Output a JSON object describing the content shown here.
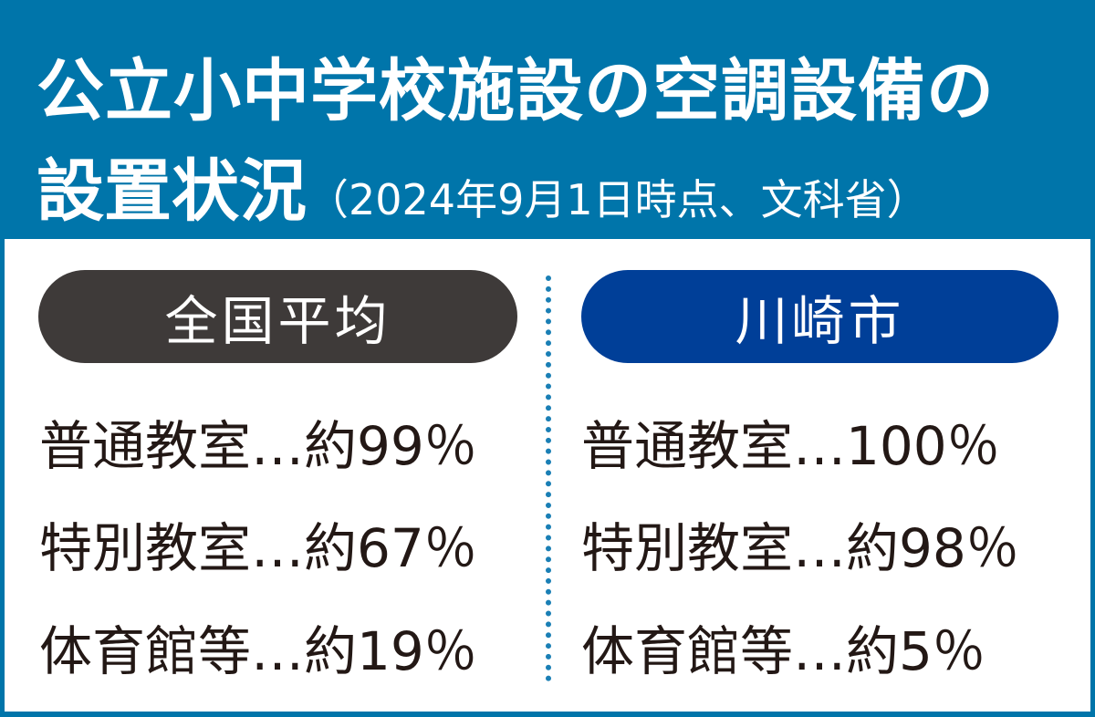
{
  "title": {
    "line1": "公立小中学校施設の空調設備の",
    "line2_main": "設置状況",
    "line2_note": "（2024年9月1日時点、文科省）"
  },
  "colors": {
    "header": "#0075aa",
    "national_pill": "#3e3a39",
    "kawasaki_pill": "#003f98"
  },
  "national": {
    "label": "全国平均",
    "rows": [
      {
        "text": "普通教室…約99％"
      },
      {
        "text": "特別教室…約67％"
      },
      {
        "text": "体育館等…約19％"
      }
    ]
  },
  "kawasaki": {
    "label": "川崎市",
    "rows": [
      {
        "text": "普通教室…100％"
      },
      {
        "text": "特別教室…約98％"
      },
      {
        "text": "体育館等…約5％"
      }
    ]
  }
}
